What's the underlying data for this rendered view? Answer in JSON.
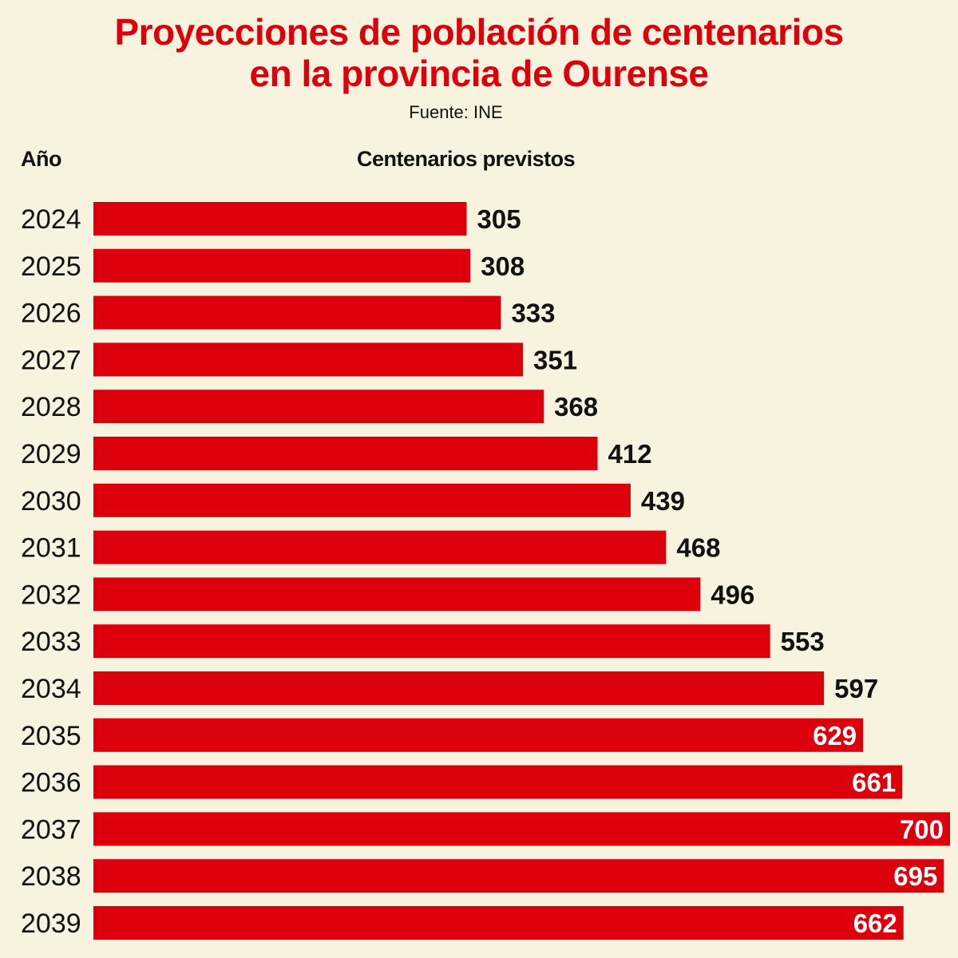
{
  "chart_data": {
    "type": "bar",
    "orientation": "horizontal",
    "title": "Proyecciones de población de centenarios en la provincia de Ourense",
    "title_lines": [
      "Proyecciones de población de centenarios",
      "en la provincia de Ourense"
    ],
    "source": "Fuente: INE",
    "category_header": "Año",
    "value_header": "Centenarios previstos",
    "categories": [
      "2024",
      "2025",
      "2026",
      "2027",
      "2028",
      "2029",
      "2030",
      "2031",
      "2032",
      "2033",
      "2034",
      "2035",
      "2036",
      "2037",
      "2038",
      "2039"
    ],
    "values": [
      305,
      308,
      333,
      351,
      368,
      412,
      439,
      468,
      496,
      553,
      597,
      629,
      661,
      700,
      695,
      662
    ],
    "xlim": [
      0,
      700
    ],
    "grid": false,
    "data_labels": true,
    "colors": {
      "bar": "#dc000c",
      "background": "#f8f3de",
      "title": "#dc000c",
      "label_outside": "#111111",
      "label_inside": "#ffffff"
    }
  }
}
